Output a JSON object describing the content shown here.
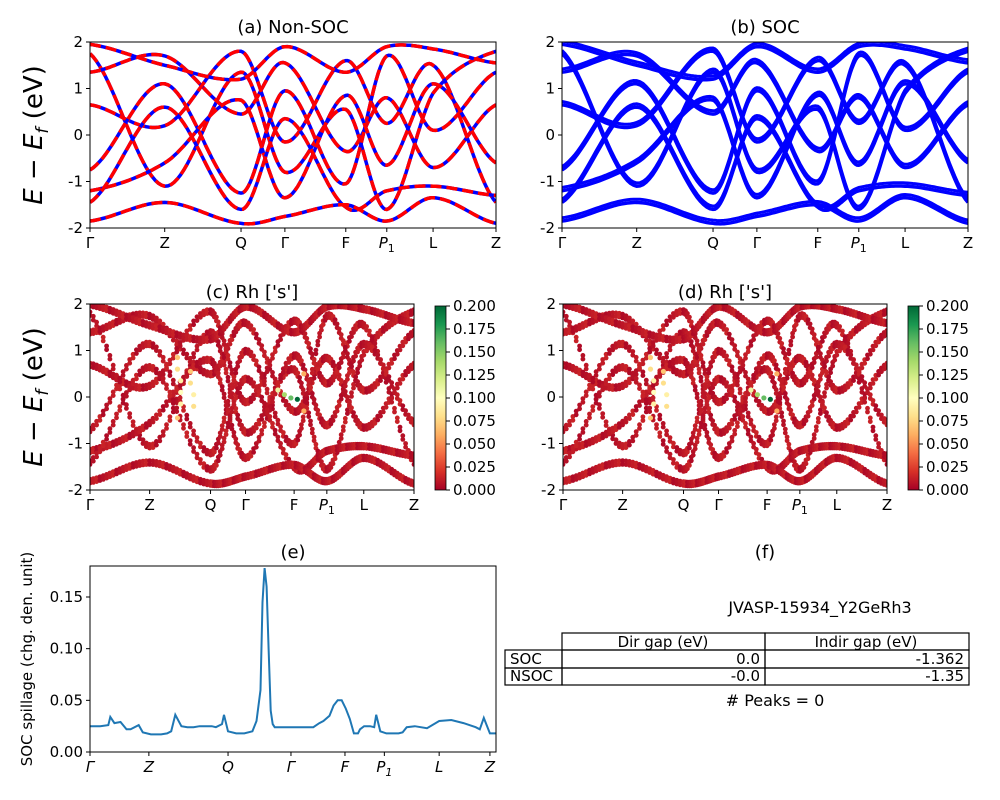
{
  "figure": {
    "ylabel_html": "E − E_f (eV)"
  },
  "chart_data": [
    {
      "id": "a",
      "type": "line",
      "title": "(a) Non-SOC",
      "ylabel": "E − E_f (eV)",
      "ylim": [
        -2,
        2
      ],
      "yticks": [
        -2,
        -1,
        0,
        1,
        2
      ],
      "kpath": [
        "Γ",
        "Z",
        "Q",
        "Γ",
        "F",
        "P1",
        "L",
        "Z"
      ],
      "kpos": [
        0,
        0.184,
        0.372,
        0.48,
        0.63,
        0.731,
        0.845,
        1.0
      ],
      "series": [
        {
          "values_at_kpath": [
            1.75,
            -1.1,
            1.35,
            -0.8,
            0.55,
            -1.6,
            0.9,
            1.8
          ],
          "color": "#ff0000"
        },
        {
          "values_at_kpath": [
            1.35,
            1.7,
            0.45,
            1.55,
            -0.35,
            0.8,
            -0.7,
            0.65
          ],
          "color": "#ff0000"
        },
        {
          "values_at_kpath": [
            0.65,
            0.2,
            1.8,
            -0.15,
            1.6,
            0.25,
            1.5,
            -1.45
          ],
          "color": "#ff0000"
        },
        {
          "values_at_kpath": [
            -0.75,
            1.1,
            -1.25,
            0.95,
            -1.05,
            1.7,
            0.1,
            1.35
          ],
          "color": "#ff0000"
        },
        {
          "values_at_kpath": [
            -1.2,
            -0.6,
            0.75,
            -1.35,
            0.85,
            -0.65,
            1.1,
            -0.6
          ],
          "color": "#ff0000"
        },
        {
          "values_at_kpath": [
            -1.45,
            0.6,
            -1.6,
            0.35,
            -1.55,
            -1.2,
            -1.1,
            -1.3
          ],
          "color": "#ff0000"
        },
        {
          "values_at_kpath": [
            -1.85,
            -1.45,
            -1.9,
            -1.75,
            -1.5,
            -1.85,
            -1.35,
            -1.9
          ],
          "color": "#ff0000"
        },
        {
          "values_at_kpath": [
            1.95,
            1.5,
            1.2,
            1.9,
            1.35,
            1.9,
            1.85,
            1.55
          ],
          "color": "#ff0000"
        }
      ]
    },
    {
      "id": "b",
      "type": "line",
      "title": "(b) SOC",
      "ylim": [
        -2,
        2
      ],
      "yticks": [
        -2,
        -1,
        0,
        1,
        2
      ],
      "kpath": [
        "Γ",
        "Z",
        "Q",
        "Γ",
        "F",
        "P1",
        "L",
        "Z"
      ],
      "kpos": [
        0,
        0.184,
        0.372,
        0.48,
        0.63,
        0.731,
        0.845,
        1.0
      ],
      "series": [
        {
          "values_at_kpath": [
            1.75,
            -1.1,
            1.35,
            -0.8,
            0.55,
            -1.6,
            0.9,
            1.8
          ],
          "color": "#0000ff"
        },
        {
          "values_at_kpath": [
            1.35,
            1.7,
            0.45,
            1.55,
            -0.35,
            0.8,
            -0.7,
            0.65
          ],
          "color": "#0000ff"
        },
        {
          "values_at_kpath": [
            0.65,
            0.2,
            1.8,
            -0.15,
            1.6,
            0.25,
            1.5,
            -1.45
          ],
          "color": "#0000ff"
        },
        {
          "values_at_kpath": [
            -0.75,
            1.1,
            -1.25,
            0.95,
            -1.05,
            1.7,
            0.1,
            1.35
          ],
          "color": "#0000ff"
        },
        {
          "values_at_kpath": [
            -1.2,
            -0.6,
            0.75,
            -1.35,
            0.85,
            -0.65,
            1.1,
            -0.6
          ],
          "color": "#0000ff"
        },
        {
          "values_at_kpath": [
            -1.45,
            0.6,
            -1.6,
            0.35,
            -1.55,
            -1.2,
            -1.1,
            -1.3
          ],
          "color": "#0000ff"
        },
        {
          "values_at_kpath": [
            -1.85,
            -1.45,
            -1.9,
            -1.75,
            -1.5,
            -1.85,
            -1.35,
            -1.9
          ],
          "color": "#0000ff"
        },
        {
          "values_at_kpath": [
            1.95,
            1.5,
            1.2,
            1.9,
            1.35,
            1.9,
            1.85,
            1.55
          ],
          "color": "#0000ff"
        }
      ]
    },
    {
      "id": "c",
      "type": "scatter",
      "title": "(c)  Rh ['s']",
      "ylabel": "E − E_f (eV)",
      "ylim": [
        -2,
        2
      ],
      "yticks": [
        -2,
        -1,
        0,
        1,
        2
      ],
      "kpath": [
        "Γ",
        "Z",
        "Q",
        "Γ",
        "F",
        "P1",
        "L",
        "Z"
      ],
      "kpos": [
        0,
        0.184,
        0.372,
        0.48,
        0.63,
        0.731,
        0.845,
        1.0
      ],
      "colorbar": {
        "min": 0.0,
        "max": 0.2,
        "ticks": [
          0.0,
          0.025,
          0.05,
          0.075,
          0.1,
          0.125,
          0.15,
          0.175,
          0.2
        ],
        "colormap": "RdYlGn"
      },
      "highlight_points": [
        {
          "x": 0.27,
          "y": 0.85,
          "c": 0.07
        },
        {
          "x": 0.27,
          "y": 0.6,
          "c": 0.08
        },
        {
          "x": 0.28,
          "y": 0.35,
          "c": 0.09
        },
        {
          "x": 0.28,
          "y": 0.1,
          "c": 0.1
        },
        {
          "x": 0.28,
          "y": -0.15,
          "c": 0.09
        },
        {
          "x": 0.27,
          "y": -0.45,
          "c": 0.07
        },
        {
          "x": 0.31,
          "y": 0.55,
          "c": 0.07
        },
        {
          "x": 0.31,
          "y": 0.3,
          "c": 0.08
        },
        {
          "x": 0.32,
          "y": 0.05,
          "c": 0.09
        },
        {
          "x": 0.32,
          "y": -0.2,
          "c": 0.08
        },
        {
          "x": 0.58,
          "y": 0.15,
          "c": 0.11
        },
        {
          "x": 0.6,
          "y": 0.05,
          "c": 0.14
        },
        {
          "x": 0.62,
          "y": -0.02,
          "c": 0.16
        },
        {
          "x": 0.64,
          "y": -0.05,
          "c": 0.2
        },
        {
          "x": 0.66,
          "y": -0.3,
          "c": 0.06
        },
        {
          "x": 0.66,
          "y": 0.5,
          "c": 0.06
        }
      ]
    },
    {
      "id": "d",
      "type": "scatter",
      "title": "(d) Rh ['s']",
      "ylim": [
        -2,
        2
      ],
      "yticks": [
        -2,
        -1,
        0,
        1,
        2
      ],
      "kpath": [
        "Γ",
        "Z",
        "Q",
        "Γ",
        "F",
        "P1",
        "L",
        "Z"
      ],
      "kpos": [
        0,
        0.184,
        0.372,
        0.48,
        0.63,
        0.731,
        0.845,
        1.0
      ],
      "colorbar": {
        "min": 0.0,
        "max": 0.2,
        "ticks": [
          0.0,
          0.025,
          0.05,
          0.075,
          0.1,
          0.125,
          0.15,
          0.175,
          0.2
        ],
        "colormap": "RdYlGn"
      },
      "highlight_points": [
        {
          "x": 0.27,
          "y": 0.85,
          "c": 0.07
        },
        {
          "x": 0.27,
          "y": 0.6,
          "c": 0.08
        },
        {
          "x": 0.28,
          "y": 0.35,
          "c": 0.09
        },
        {
          "x": 0.28,
          "y": 0.1,
          "c": 0.1
        },
        {
          "x": 0.28,
          "y": -0.15,
          "c": 0.09
        },
        {
          "x": 0.27,
          "y": -0.45,
          "c": 0.07
        },
        {
          "x": 0.31,
          "y": 0.55,
          "c": 0.07
        },
        {
          "x": 0.31,
          "y": 0.3,
          "c": 0.08
        },
        {
          "x": 0.32,
          "y": 0.05,
          "c": 0.09
        },
        {
          "x": 0.32,
          "y": -0.2,
          "c": 0.08
        },
        {
          "x": 0.58,
          "y": 0.15,
          "c": 0.11
        },
        {
          "x": 0.6,
          "y": 0.05,
          "c": 0.14
        },
        {
          "x": 0.62,
          "y": -0.02,
          "c": 0.16
        },
        {
          "x": 0.64,
          "y": -0.05,
          "c": 0.2
        },
        {
          "x": 0.66,
          "y": -0.3,
          "c": 0.06
        },
        {
          "x": 0.66,
          "y": 0.5,
          "c": 0.06
        }
      ]
    },
    {
      "id": "e",
      "type": "line",
      "title": "(e)",
      "ylabel": "SOC spillage (chg. den. unit)",
      "ylim": [
        0,
        0.18
      ],
      "yticks": [
        0.0,
        0.05,
        0.1,
        0.15
      ],
      "kpath": [
        "Γ",
        "Z",
        "Q",
        "Γ",
        "F",
        "P1",
        "L",
        "Z"
      ],
      "kpos": [
        0,
        0.145,
        0.34,
        0.495,
        0.628,
        0.725,
        0.86,
        0.985
      ],
      "series": [
        {
          "color": "#1f77b4",
          "x": [
            0,
            0.025,
            0.045,
            0.05,
            0.06,
            0.075,
            0.09,
            0.1,
            0.12,
            0.13,
            0.15,
            0.175,
            0.19,
            0.2,
            0.21,
            0.225,
            0.24,
            0.255,
            0.27,
            0.3,
            0.31,
            0.325,
            0.33,
            0.34,
            0.36,
            0.38,
            0.4,
            0.41,
            0.42,
            0.425,
            0.43,
            0.435,
            0.44,
            0.445,
            0.45,
            0.455,
            0.46,
            0.48,
            0.5,
            0.525,
            0.55,
            0.565,
            0.575,
            0.59,
            0.6,
            0.61,
            0.62,
            0.63,
            0.64,
            0.65,
            0.66,
            0.665,
            0.675,
            0.69,
            0.7,
            0.705,
            0.715,
            0.73,
            0.75,
            0.76,
            0.77,
            0.78,
            0.8,
            0.83,
            0.86,
            0.89,
            0.92,
            0.95,
            0.96,
            0.97,
            0.985,
            1.0
          ],
          "values": [
            0.025,
            0.025,
            0.026,
            0.034,
            0.028,
            0.029,
            0.022,
            0.022,
            0.026,
            0.019,
            0.017,
            0.017,
            0.018,
            0.02,
            0.036,
            0.025,
            0.024,
            0.024,
            0.025,
            0.025,
            0.024,
            0.027,
            0.036,
            0.02,
            0.018,
            0.018,
            0.02,
            0.03,
            0.06,
            0.145,
            0.178,
            0.16,
            0.1,
            0.04,
            0.027,
            0.024,
            0.024,
            0.024,
            0.024,
            0.024,
            0.024,
            0.028,
            0.03,
            0.035,
            0.045,
            0.05,
            0.05,
            0.042,
            0.032,
            0.018,
            0.018,
            0.022,
            0.025,
            0.025,
            0.024,
            0.036,
            0.02,
            0.018,
            0.018,
            0.018,
            0.019,
            0.024,
            0.025,
            0.023,
            0.03,
            0.031,
            0.028,
            0.024,
            0.022,
            0.033,
            0.018,
            0.018
          ]
        }
      ]
    }
  ],
  "panel_f": {
    "title": "(f)",
    "material_id": "JVASP-15934_Y2GeRh3",
    "table": {
      "headers": [
        "",
        "Dir gap (eV)",
        "Indir gap (eV)"
      ],
      "rows": [
        {
          "label": "SOC",
          "dir": "0.0",
          "indir": "-1.362"
        },
        {
          "label": "NSOC",
          "dir": "-0.0",
          "indir": "-1.35"
        }
      ]
    },
    "peaks_text": "# Peaks = 0"
  }
}
